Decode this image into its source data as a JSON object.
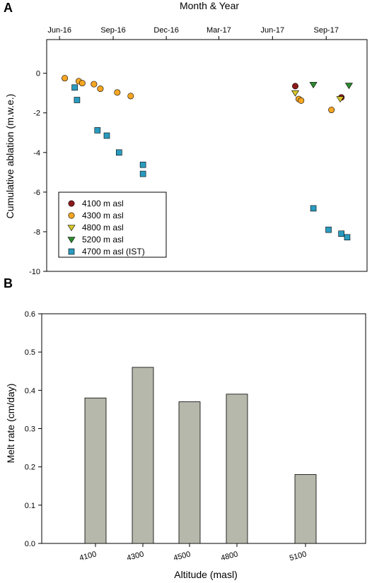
{
  "chart_data": [
    {
      "panel": "A",
      "type": "scatter",
      "title": "",
      "xlabel": "Month & Year",
      "ylabel": "Cumulative ablation (m.w.e.)",
      "x_ticks": [
        "Jun-16",
        "Sep-16",
        "Dec-16",
        "Mar-17",
        "Jun-17",
        "Sep-17"
      ],
      "y_ticks": [
        0,
        -2,
        -4,
        -6,
        -8,
        -10
      ],
      "ylim": [
        -10,
        1.7
      ],
      "xlim": [
        "2016-05-10",
        "2017-11-10"
      ],
      "legend_placement": "lower-left",
      "series": [
        {
          "name": "4100 m asl",
          "marker": "circle",
          "color": "#8b1a1a",
          "points": [
            {
              "x": "2017-07-10",
              "y": -0.65
            },
            {
              "x": "2017-09-27",
              "y": -1.22
            }
          ]
        },
        {
          "name": "4300 m asl",
          "marker": "circle",
          "color": "#f5a623",
          "points": [
            {
              "x": "2016-06-10",
              "y": -0.25
            },
            {
              "x": "2016-07-04",
              "y": -0.4
            },
            {
              "x": "2016-07-10",
              "y": -0.5
            },
            {
              "x": "2016-07-30",
              "y": -0.55
            },
            {
              "x": "2016-08-10",
              "y": -0.78
            },
            {
              "x": "2016-09-08",
              "y": -0.97
            },
            {
              "x": "2016-10-01",
              "y": -1.15
            },
            {
              "x": "2017-07-16",
              "y": -1.3
            },
            {
              "x": "2017-07-20",
              "y": -1.38
            },
            {
              "x": "2017-09-10",
              "y": -1.85
            }
          ]
        },
        {
          "name": "4800 m asl",
          "marker": "triangle-down",
          "color": "#d4c62a",
          "points": [
            {
              "x": "2017-07-10",
              "y": -1.0
            },
            {
              "x": "2017-09-25",
              "y": -1.3
            }
          ]
        },
        {
          "name": "5200 m asl",
          "marker": "triangle-down",
          "color": "#2e8b2e",
          "points": [
            {
              "x": "2017-08-10",
              "y": -0.58
            },
            {
              "x": "2017-10-10",
              "y": -0.62
            }
          ]
        },
        {
          "name": "4700 m asl (IST)",
          "marker": "square",
          "color": "#2a9bbf",
          "points": [
            {
              "x": "2016-06-27",
              "y": -0.72
            },
            {
              "x": "2016-07-01",
              "y": -1.35
            },
            {
              "x": "2016-08-05",
              "y": -2.88
            },
            {
              "x": "2016-08-21",
              "y": -3.15
            },
            {
              "x": "2016-09-11",
              "y": -4.0
            },
            {
              "x": "2016-10-22",
              "y": -4.62
            },
            {
              "x": "2016-10-22",
              "y": -5.08
            },
            {
              "x": "2017-08-10",
              "y": -6.82
            },
            {
              "x": "2017-09-05",
              "y": -7.9
            },
            {
              "x": "2017-09-27",
              "y": -8.1
            },
            {
              "x": "2017-10-07",
              "y": -8.28
            }
          ]
        }
      ]
    },
    {
      "panel": "B",
      "type": "bar",
      "title": "",
      "xlabel": "Altitude (masl)",
      "ylabel": "Melt rate (cm/day)",
      "categories": [
        "4100",
        "4300",
        "4500",
        "4800",
        "5100"
      ],
      "values": [
        0.38,
        0.46,
        0.37,
        0.39,
        0.18
      ],
      "ylim": [
        0,
        0.6
      ],
      "y_ticks": [
        "0.0",
        "0.1",
        "0.2",
        "0.3",
        "0.4",
        "0.5",
        "0.6"
      ],
      "bar_color": "#b5b8aa"
    }
  ]
}
